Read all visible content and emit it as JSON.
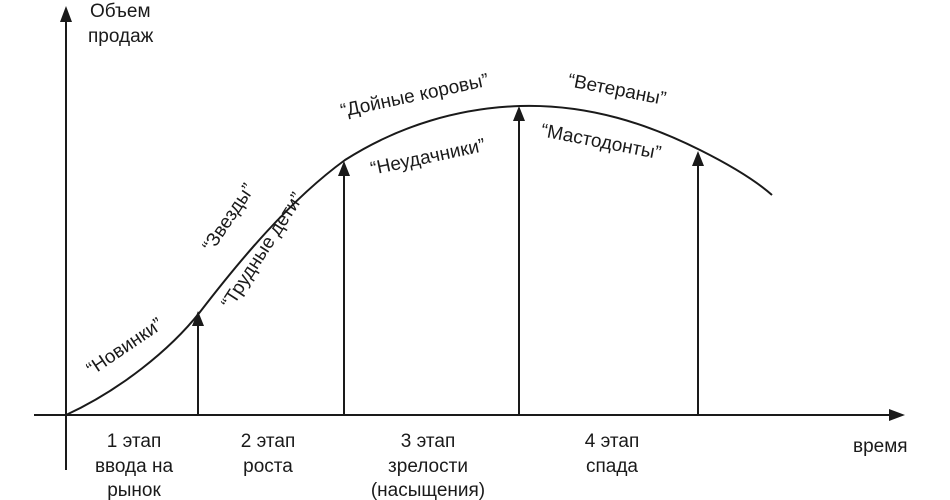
{
  "axes": {
    "y_label_line1": "Объем",
    "y_label_line2": "продаж",
    "x_label": "время"
  },
  "categories": {
    "novinki": "“Новинки”",
    "zvezdy": "“Звезды”",
    "trudnye_deti": "“Трудные дети”",
    "doinye_korovy": "“Дойные коровы”",
    "neudachniki": "“Неудачники”",
    "veterany": "“Ветераны”",
    "mastodonty": "“Мастодонты”"
  },
  "stages": [
    {
      "lines": [
        "1 этап",
        "ввода на",
        "рынок"
      ]
    },
    {
      "lines": [
        "2 этап",
        "роста"
      ]
    },
    {
      "lines": [
        "3 этап",
        "зрелости",
        "(насыщения)"
      ]
    },
    {
      "lines": [
        "4 этап",
        "спада"
      ]
    }
  ]
}
